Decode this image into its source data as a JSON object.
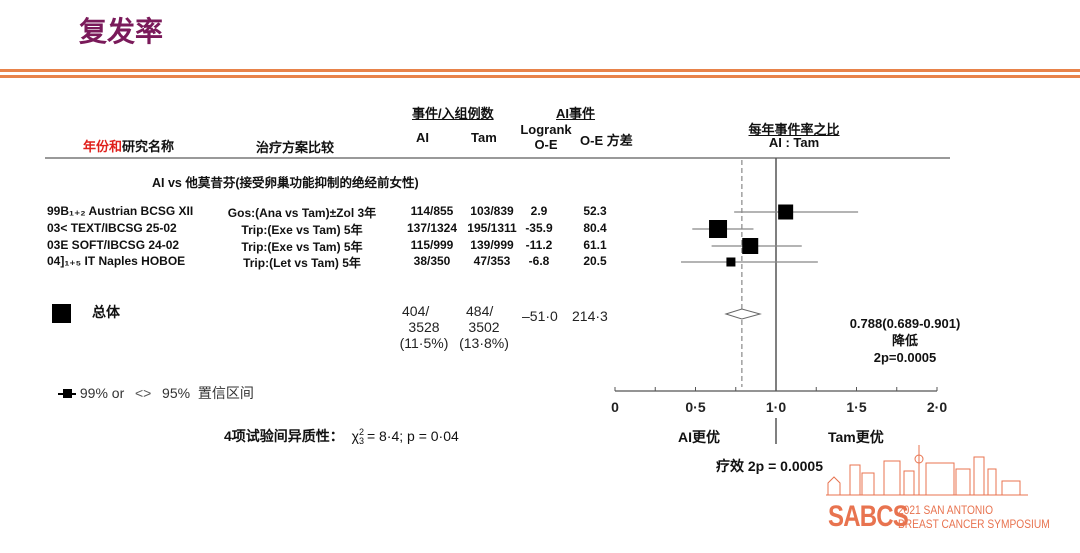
{
  "title": "复发率",
  "header": {
    "events_group": "事件/入组例数",
    "ai_events_group": "AI事件",
    "study_prefix": "年份和",
    "study_suffix": "研究名称",
    "treatment": "治疗方案比较",
    "col_ai": "AI",
    "col_tam": "Tam",
    "col_logrank_1": "Logrank",
    "col_logrank_2": "O-E",
    "col_variance": "O-E 方差",
    "ratio_title": "每年事件率之比",
    "ratio_sub": "AI : Tam"
  },
  "section_label": "AI vs 他莫昔芬(接受卵巢功能抑制的绝经前女性)",
  "overall": {
    "label": "总体",
    "ai_1": "404/",
    "ai_2": "3528",
    "ai_3": "(11·5%)",
    "tam_1": "484/",
    "tam_2": "3502",
    "tam_3": "(13·8%)",
    "oe": "–51·0",
    "var": "214·3"
  },
  "legend": {
    "ci99": "99% or",
    "ci95": "95%",
    "ci_label": "置信区间"
  },
  "heterogeneity": {
    "label": "4项试验间异质性：",
    "stat": "χ",
    "sup": "2",
    "sub": "3",
    "rest": "= 8·4; p = 0·04"
  },
  "result": {
    "line1": "0.788(0.689-0.901)",
    "line2": "降低",
    "line3": "2p=0.0005"
  },
  "favours": {
    "left": "AI更优",
    "right": "Tam更优"
  },
  "effect": "疗效 2p = 0.0005",
  "logo": {
    "brand": "SABCS",
    "line1": "2021 SAN ANTONIO",
    "line2": "BREAST CANCER SYMPOSIUM",
    "color": "#e8734f"
  },
  "colors": {
    "title": "#7a1a5a",
    "accent_line": "#e8834a",
    "study_prefix": "#e0201c"
  },
  "chart_data": {
    "type": "forest",
    "xlim": [
      0,
      2.0
    ],
    "xticks": [
      "0",
      "0·5",
      "1·0",
      "1·5",
      "2·0"
    ],
    "xtick_values": [
      0,
      0.5,
      1.0,
      1.5,
      2.0
    ],
    "reference_line": 1.0,
    "overall_line": 0.788,
    "studies": [
      {
        "study": "99B₁₊₂ Austrian BCSG XII",
        "treatment": "Gos:(Ana vs Tam)±Zol 3年",
        "ai": "114/855",
        "tam": "103/839",
        "oe": "2.9",
        "var": "52.3",
        "ratio": 1.06,
        "ci": [
          0.74,
          1.51
        ]
      },
      {
        "study": "03< TEXT/IBCSG 25-02",
        "treatment": "Trip:(Exe vs Tam) 5年",
        "ai": "137/1324",
        "tam": "195/1311",
        "oe": "-35.9",
        "var": "80.4",
        "ratio": 0.64,
        "ci": [
          0.48,
          0.86
        ]
      },
      {
        "study": "03E SOFT/IBCSG 24-02",
        "treatment": "Trip:(Exe vs Tam) 5年",
        "ai": "115/999",
        "tam": "139/999",
        "oe": "-11.2",
        "var": "61.1",
        "ratio": 0.84,
        "ci": [
          0.6,
          1.16
        ]
      },
      {
        "study": "04]₁₊₅ IT Naples HOBOE",
        "treatment": "Trip:(Let vs Tam) 5年",
        "ai": "38/350",
        "tam": "47/353",
        "oe": "-6.8",
        "var": "20.5",
        "ratio": 0.72,
        "ci": [
          0.41,
          1.26
        ]
      }
    ],
    "overall": {
      "ratio": 0.788,
      "ci": [
        0.689,
        0.901
      ]
    }
  }
}
